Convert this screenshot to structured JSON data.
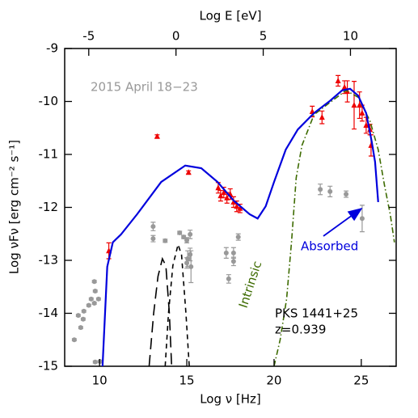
{
  "chart_data": {
    "type": "scatter",
    "xlabel": "Log ν [Hz]",
    "ylabel": "Log νFν [erg cm⁻² s⁻¹]",
    "x2label": "Log E [eV]",
    "xlim": [
      8,
      27
    ],
    "ylim": [
      -15,
      -9
    ],
    "x2lim": [
      -6.38,
      12.62
    ],
    "xticks": [
      10,
      15,
      20,
      25
    ],
    "yticks": [
      -15,
      -14,
      -13,
      -12,
      -11,
      -10,
      -9
    ],
    "x2ticks": [
      -5,
      0,
      5,
      10
    ],
    "annotations": [
      "2015 April 18−23",
      "PKS 1441+25",
      "z=0.939"
    ],
    "series": [
      {
        "kind": "points",
        "marker": "circle",
        "color": "#999999",
        "x": [
          8.55,
          8.78,
          8.92,
          9.06,
          9.1,
          9.38,
          9.52,
          9.7,
          9.7,
          9.75,
          9.94,
          9.75,
          10.03,
          13.07,
          13.07,
          13.76,
          14.59,
          14.82,
          15.0,
          15.19,
          15.19,
          15.05,
          15.24,
          15.0,
          17.26,
          17.68,
          17.68,
          17.95,
          17.4,
          22.65,
          23.21,
          24.13,
          25.05
        ],
        "y": [
          -14.5,
          -14.04,
          -14.27,
          -14.11,
          -13.96,
          -13.85,
          -13.73,
          -13.81,
          -13.4,
          -13.58,
          -13.73,
          -14.92,
          -14.91,
          -12.36,
          -12.59,
          -12.63,
          -12.48,
          -12.56,
          -12.62,
          -12.51,
          -12.89,
          -12.97,
          -13.12,
          -13.05,
          -12.86,
          -12.86,
          -13.02,
          -12.56,
          -13.35,
          -11.66,
          -11.7,
          -11.75,
          -12.21
        ],
        "yerr": [
          0.02,
          0.02,
          0.02,
          0.02,
          0.02,
          0.02,
          0.02,
          0.02,
          0.02,
          0.02,
          0.02,
          0.02,
          0.02,
          0.08,
          0.06,
          0.03,
          0.03,
          0.03,
          0.05,
          0.08,
          0.12,
          0.15,
          0.3,
          0.1,
          0.1,
          0.1,
          0.08,
          0.06,
          0.08,
          0.1,
          0.1,
          0.06,
          0.25
        ]
      },
      {
        "kind": "points",
        "marker": "triangle",
        "color": "#ee0000",
        "x": [
          10.53,
          13.3,
          15.1,
          16.8,
          16.94,
          17.12,
          17.3,
          17.49,
          17.68,
          17.86,
          18.05,
          22.19,
          22.75,
          23.67,
          24.04,
          24.2,
          24.59,
          24.9,
          25.05,
          25.28,
          25.5,
          25.56
        ],
        "y": [
          -12.82,
          -10.66,
          -11.34,
          -11.63,
          -11.78,
          -11.72,
          -11.82,
          -11.75,
          -11.9,
          -11.98,
          -12.02,
          -10.19,
          -10.3,
          -9.61,
          -9.73,
          -9.81,
          -10.07,
          -10.07,
          -10.22,
          -10.45,
          -10.53,
          -10.83
        ],
        "yerr": [
          0.15,
          0.03,
          0.03,
          0.1,
          0.1,
          0.1,
          0.1,
          0.1,
          0.1,
          0.1,
          0.08,
          0.1,
          0.12,
          0.1,
          0.12,
          0.2,
          0.45,
          0.25,
          0.15,
          0.15,
          0.1,
          0.2
        ]
      },
      {
        "kind": "line",
        "style": "long-dash",
        "color": "#000000",
        "x": [
          12.84,
          13.1,
          13.35,
          13.6,
          13.8,
          14.0,
          14.13
        ],
        "y": [
          -15,
          -14,
          -13.3,
          -12.97,
          -13.1,
          -14,
          -15
        ]
      },
      {
        "kind": "line",
        "style": "short-dash",
        "color": "#000000",
        "x": [
          13.76,
          13.95,
          14.2,
          14.5,
          14.7,
          14.95,
          15.14
        ],
        "y": [
          -15,
          -14,
          -13.1,
          -12.7,
          -12.9,
          -14,
          -15
        ]
      },
      {
        "kind": "line",
        "style": "dash-dot",
        "color": "#3d6b00",
        "label": "Intrinsic",
        "x": [
          20.0,
          20.35,
          20.72,
          21.0,
          21.27,
          21.6,
          22.29,
          23.2,
          24.13,
          24.82,
          25.5,
          25.97,
          26.34,
          26.66,
          26.9
        ],
        "y": [
          -15,
          -14.5,
          -13.73,
          -12.66,
          -11.44,
          -10.83,
          -10.25,
          -10.02,
          -9.79,
          -9.92,
          -10.37,
          -10.91,
          -11.6,
          -12.13,
          -12.66
        ]
      },
      {
        "kind": "line",
        "style": "solid",
        "color": "#0000dd",
        "label": "Absorbed",
        "x": [
          10.17,
          10.44,
          10.76,
          11.23,
          12.15,
          13.53,
          14.91,
          15.83,
          16.76,
          17.68,
          18.6,
          19.06,
          19.52,
          20.0,
          20.67,
          21.36,
          22.29,
          23.2,
          23.9,
          24.36,
          24.82,
          25.28,
          25.6,
          25.79,
          25.97
        ],
        "y": [
          -15,
          -13.12,
          -12.66,
          -12.51,
          -12.13,
          -11.52,
          -11.21,
          -11.26,
          -11.52,
          -11.87,
          -12.13,
          -12.21,
          -11.98,
          -11.52,
          -10.91,
          -10.53,
          -10.22,
          -9.99,
          -9.79,
          -9.76,
          -9.89,
          -10.22,
          -10.76,
          -11.14,
          -11.9
        ]
      }
    ]
  }
}
